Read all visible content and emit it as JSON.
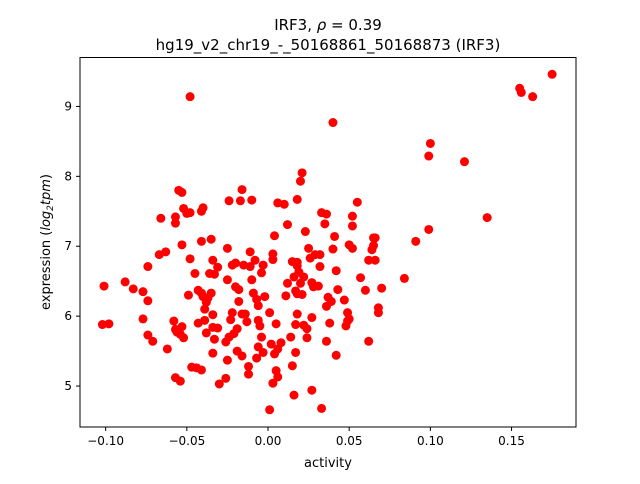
{
  "chart_data": {
    "type": "scatter",
    "title_prefix": "IRF3, ",
    "title_rho_symbol": "ρ",
    "title_rho_text": " = 0.39",
    "subtitle": "hg19_v2_chr19_-_50168861_50168873 (IRF3)",
    "xlabel": "activity",
    "ylabel_prefix": "expression (",
    "ylabel_log": "log",
    "ylabel_sub": "2",
    "ylabel_tpm": "tpm",
    "ylabel_suffix": ")",
    "xlim": [
      -0.1158,
      0.1897
    ],
    "ylim": [
      4.414,
      9.7
    ],
    "xticks": [
      -0.1,
      -0.05,
      0.0,
      0.05,
      0.1,
      0.15
    ],
    "xtick_labels": [
      "−0.10",
      "−0.05",
      "0.00",
      "0.05",
      "0.10",
      "0.15"
    ],
    "yticks": [
      5,
      6,
      7,
      8,
      9
    ],
    "ytick_labels": [
      "5",
      "6",
      "7",
      "8",
      "9"
    ],
    "grid": false,
    "marker_color": "#ff0000",
    "points": [
      [
        0.175,
        9.46
      ],
      [
        0.155,
        9.26
      ],
      [
        0.156,
        9.2
      ],
      [
        0.163,
        9.14
      ],
      [
        0.1,
        8.47
      ],
      [
        0.099,
        8.29
      ],
      [
        0.121,
        8.21
      ],
      [
        0.135,
        7.41
      ],
      [
        0.099,
        7.24
      ],
      [
        0.091,
        7.07
      ],
      [
        0.084,
        6.54
      ],
      [
        -0.048,
        9.14
      ],
      [
        0.04,
        8.77
      ],
      [
        -0.101,
        6.43
      ],
      [
        -0.102,
        5.88
      ],
      [
        -0.098,
        5.89
      ],
      [
        -0.088,
        6.49
      ],
      [
        -0.083,
        6.39
      ],
      [
        -0.077,
        6.35
      ],
      [
        -0.074,
        6.22
      ],
      [
        -0.074,
        6.71
      ],
      [
        -0.074,
        5.73
      ],
      [
        -0.071,
        5.64
      ],
      [
        -0.077,
        5.96
      ],
      [
        -0.067,
        6.88
      ],
      [
        -0.066,
        7.4
      ],
      [
        -0.063,
        6.92
      ],
      [
        -0.062,
        5.53
      ],
      [
        -0.058,
        5.93
      ],
      [
        -0.057,
        5.81
      ],
      [
        -0.056,
        5.77
      ],
      [
        -0.057,
        5.12
      ],
      [
        -0.054,
        5.07
      ],
      [
        -0.057,
        7.33
      ],
      [
        -0.057,
        7.42
      ],
      [
        -0.055,
        7.8
      ],
      [
        -0.053,
        7.77
      ],
      [
        -0.052,
        7.54
      ],
      [
        -0.05,
        7.47
      ],
      [
        -0.048,
        7.48
      ],
      [
        -0.053,
        7.02
      ],
      [
        -0.048,
        6.82
      ],
      [
        -0.049,
        6.3
      ],
      [
        -0.052,
        5.69
      ],
      [
        -0.054,
        5.74
      ],
      [
        -0.053,
        5.85
      ],
      [
        -0.047,
        5.27
      ],
      [
        -0.044,
        5.26
      ],
      [
        -0.041,
        5.23
      ],
      [
        -0.045,
        6.61
      ],
      [
        -0.043,
        6.37
      ],
      [
        -0.041,
        6.33
      ],
      [
        -0.04,
        6.28
      ],
      [
        -0.041,
        7.07
      ],
      [
        -0.04,
        7.55
      ],
      [
        -0.041,
        7.5
      ],
      [
        -0.037,
        6.26
      ],
      [
        -0.038,
        6.2
      ],
      [
        -0.039,
        6.1
      ],
      [
        -0.039,
        5.94
      ],
      [
        -0.038,
        5.76
      ],
      [
        -0.043,
        5.9
      ],
      [
        -0.036,
        6.61
      ],
      [
        -0.035,
        7.1
      ],
      [
        -0.034,
        6.8
      ],
      [
        -0.033,
        6.6
      ],
      [
        -0.031,
        6.7
      ],
      [
        -0.035,
        6.33
      ],
      [
        -0.034,
        6.02
      ],
      [
        -0.034,
        5.84
      ],
      [
        -0.031,
        5.83
      ],
      [
        -0.033,
        5.67
      ],
      [
        -0.034,
        5.47
      ],
      [
        -0.03,
        5.03
      ],
      [
        -0.026,
        5.11
      ],
      [
        -0.025,
        5.37
      ],
      [
        -0.026,
        5.63
      ],
      [
        -0.024,
        5.7
      ],
      [
        -0.023,
        5.95
      ],
      [
        -0.022,
        6.05
      ],
      [
        -0.025,
        6.52
      ],
      [
        -0.022,
        6.73
      ],
      [
        -0.025,
        6.97
      ],
      [
        -0.024,
        7.65
      ],
      [
        -0.017,
        7.65
      ],
      [
        -0.016,
        7.81
      ],
      [
        -0.01,
        7.66
      ],
      [
        -0.02,
        6.42
      ],
      [
        -0.018,
        6.38
      ],
      [
        -0.018,
        6.21
      ],
      [
        -0.016,
        6.03
      ],
      [
        -0.014,
        6.03
      ],
      [
        -0.013,
        5.92
      ],
      [
        -0.019,
        5.82
      ],
      [
        -0.021,
        5.75
      ],
      [
        -0.016,
        5.43
      ],
      [
        -0.012,
        5.28
      ],
      [
        -0.012,
        5.17
      ],
      [
        -0.019,
        5.5
      ],
      [
        -0.02,
        6.76
      ],
      [
        -0.015,
        6.73
      ],
      [
        -0.011,
        6.71
      ],
      [
        -0.011,
        6.92
      ],
      [
        -0.01,
        6.52
      ],
      [
        -0.009,
        6.33
      ],
      [
        -0.007,
        6.24
      ],
      [
        -0.006,
        6.15
      ],
      [
        -0.008,
        6.8
      ],
      [
        -0.006,
        5.94
      ],
      [
        -0.005,
        5.86
      ],
      [
        -0.004,
        5.7
      ],
      [
        -0.006,
        5.56
      ],
      [
        -0.007,
        5.4
      ],
      [
        -0.003,
        5.48
      ],
      [
        -0.002,
        6.28
      ],
      [
        -0.004,
        6.62
      ],
      [
        -0.003,
        6.73
      ],
      [
        0.001,
        4.66
      ],
      [
        0.003,
        5.04
      ],
      [
        0.005,
        5.22
      ],
      [
        0.006,
        5.13
      ],
      [
        0.004,
        5.46
      ],
      [
        0.006,
        5.53
      ],
      [
        0.002,
        5.6
      ],
      [
        0.008,
        5.62
      ],
      [
        0.001,
        6.05
      ],
      [
        0.005,
        5.89
      ],
      [
        0.003,
        6.89
      ],
      [
        0.003,
        6.81
      ],
      [
        0.004,
        7.15
      ],
      [
        0.006,
        7.62
      ],
      [
        0.01,
        7.6
      ],
      [
        0.012,
        7.31
      ],
      [
        0.011,
        6.29
      ],
      [
        0.012,
        6.47
      ],
      [
        0.014,
        5.7
      ],
      [
        0.015,
        5.29
      ],
      [
        0.017,
        5.88
      ],
      [
        0.017,
        6.36
      ],
      [
        0.016,
        6.56
      ],
      [
        0.015,
        6.78
      ],
      [
        0.018,
        6.77
      ],
      [
        0.018,
        6.72
      ],
      [
        0.019,
        6.63
      ],
      [
        0.02,
        6.47
      ],
      [
        0.018,
        6.32
      ],
      [
        0.018,
        6.03
      ],
      [
        0.017,
        5.48
      ],
      [
        0.016,
        4.87
      ],
      [
        0.018,
        7.67
      ],
      [
        0.02,
        7.93
      ],
      [
        0.021,
        8.05
      ],
      [
        0.023,
        7.21
      ],
      [
        0.021,
        6.31
      ],
      [
        0.022,
        6.56
      ],
      [
        0.022,
        5.87
      ],
      [
        0.024,
        5.82
      ],
      [
        0.024,
        5.69
      ],
      [
        0.025,
        6.97
      ],
      [
        0.026,
        6.83
      ],
      [
        0.027,
        6.48
      ],
      [
        0.028,
        6.42
      ],
      [
        0.029,
        6.88
      ],
      [
        0.027,
        5.98
      ],
      [
        0.027,
        4.94
      ],
      [
        0.031,
        6.43
      ],
      [
        0.032,
        6.71
      ],
      [
        0.032,
        6.88
      ],
      [
        0.033,
        7.48
      ],
      [
        0.033,
        4.68
      ],
      [
        0.035,
        7.32
      ],
      [
        0.036,
        7.46
      ],
      [
        0.036,
        6.14
      ],
      [
        0.037,
        6.27
      ],
      [
        0.036,
        5.64
      ],
      [
        0.038,
        5.9
      ],
      [
        0.039,
        6.21
      ],
      [
        0.04,
        6.96
      ],
      [
        0.041,
        7.14
      ],
      [
        0.042,
        6.65
      ],
      [
        0.042,
        5.44
      ],
      [
        0.043,
        6.38
      ],
      [
        0.047,
        6.23
      ],
      [
        0.048,
        5.86
      ],
      [
        0.049,
        5.93
      ],
      [
        0.05,
        5.96
      ],
      [
        0.049,
        6.05
      ],
      [
        0.05,
        7.02
      ],
      [
        0.052,
        6.97
      ],
      [
        0.052,
        7.43
      ],
      [
        0.052,
        7.29
      ],
      [
        0.055,
        7.63
      ],
      [
        0.057,
        6.55
      ],
      [
        0.06,
        6.37
      ],
      [
        0.062,
        5.64
      ],
      [
        0.062,
        6.8
      ],
      [
        0.064,
        6.95
      ],
      [
        0.065,
        7.01
      ],
      [
        0.065,
        7.12
      ],
      [
        0.066,
        7.12
      ],
      [
        0.066,
        6.8
      ],
      [
        0.068,
        6.05
      ],
      [
        0.068,
        6.12
      ],
      [
        0.07,
        6.4
      ]
    ]
  }
}
